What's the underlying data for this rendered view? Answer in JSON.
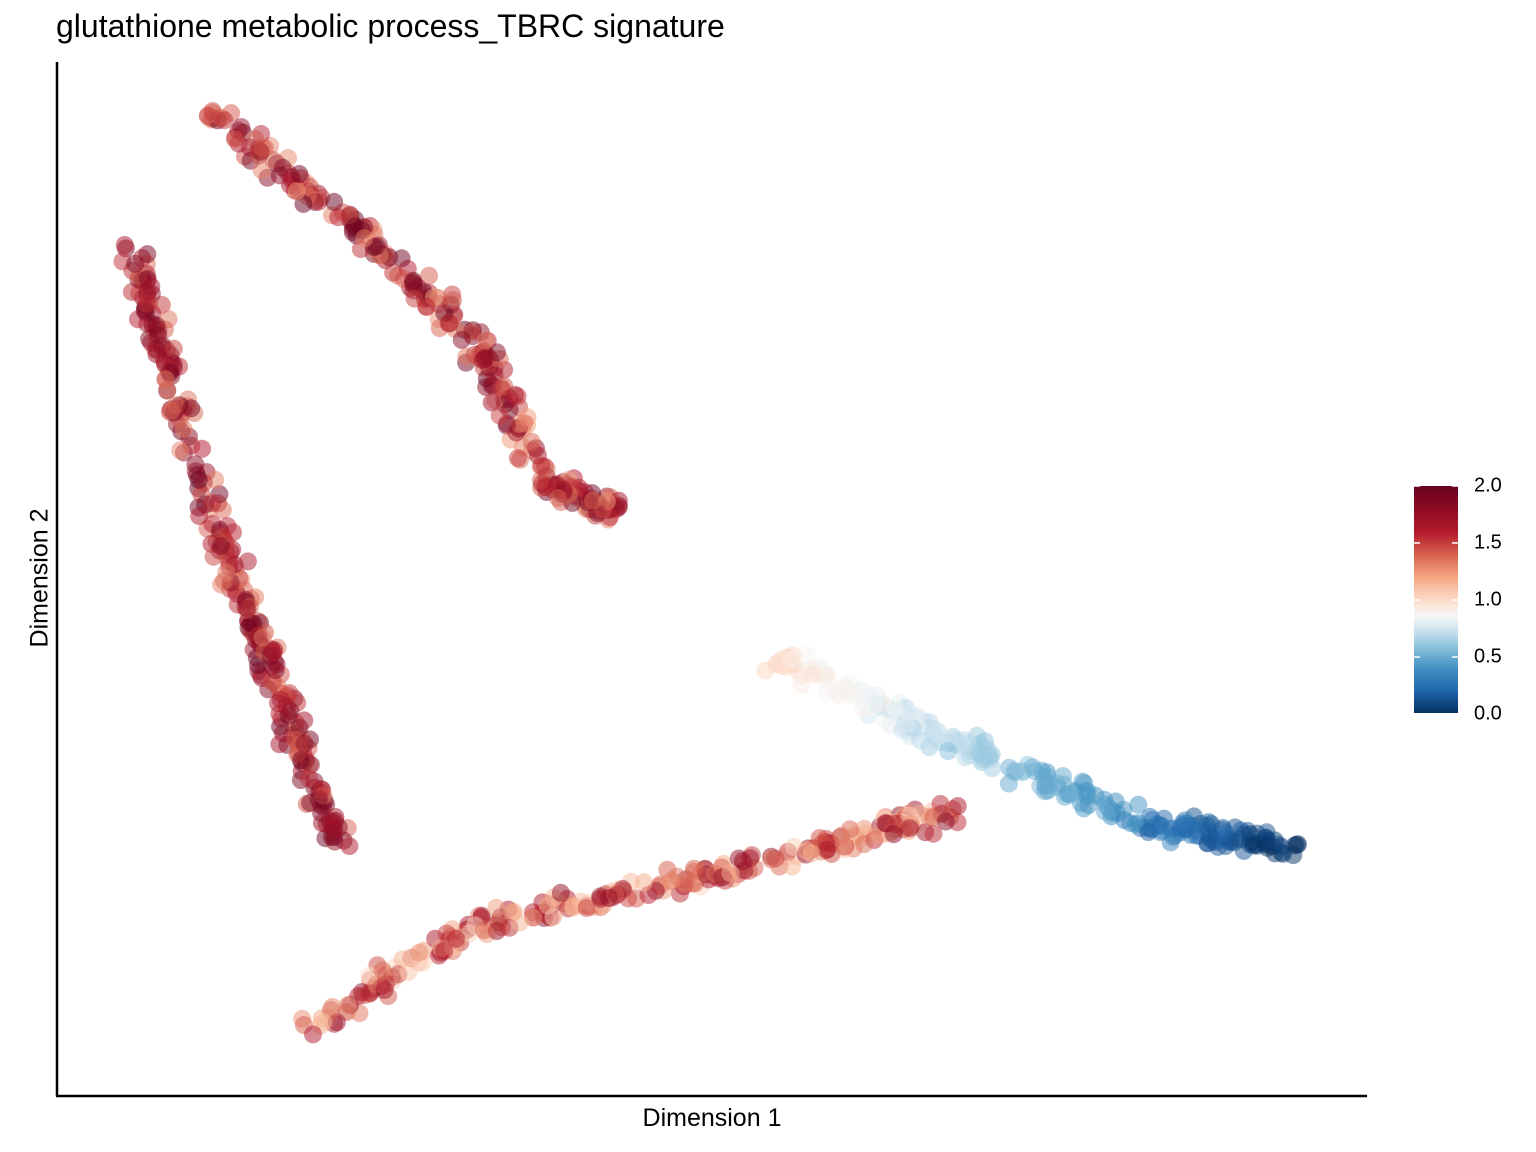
{
  "chart_data": {
    "type": "scatter",
    "title": "glutathione metabolic process_TBRC signature",
    "xlabel": "Dimension 1",
    "ylabel": "Dimension 2",
    "grid": false,
    "axis_ticks": false,
    "legend": {
      "position": "right",
      "type": "colorbar",
      "range": [
        0.0,
        2.0
      ],
      "ticks": [
        "0.0",
        "0.5",
        "1.0",
        "1.5",
        "2.0"
      ],
      "colors": [
        "#053061",
        "#2166ac",
        "#4393c3",
        "#92c5de",
        "#d1e5f0",
        "#f7f7f7",
        "#fddbc7",
        "#f4a582",
        "#d6604d",
        "#b2182b",
        "#67001f"
      ]
    },
    "point_opacity": 0.5,
    "trajectory_branches": [
      {
        "name": "",
        "value_range": [
          1.3,
          2.0
        ],
        "points": [
          [
            0.02,
            0.85
          ],
          [
            0.05,
            0.7
          ],
          [
            0.1,
            0.52
          ],
          [
            0.15,
            0.35
          ],
          [
            0.19,
            0.22
          ]
        ]
      },
      {
        "name": "",
        "value_range": [
          1.2,
          2.0
        ],
        "points": [
          [
            0.08,
            0.99
          ],
          [
            0.2,
            0.87
          ],
          [
            0.3,
            0.75
          ],
          [
            0.36,
            0.6
          ],
          [
            0.42,
            0.57
          ]
        ]
      },
      {
        "name": "",
        "value_range": [
          0.0,
          1.0
        ],
        "points": [
          [
            0.55,
            0.42
          ],
          [
            0.7,
            0.33
          ],
          [
            0.85,
            0.25
          ],
          [
            0.98,
            0.22
          ]
        ]
      },
      {
        "name": "",
        "value_range": [
          1.0,
          1.8
        ],
        "points": [
          [
            0.16,
            0.03
          ],
          [
            0.3,
            0.14
          ],
          [
            0.45,
            0.18
          ],
          [
            0.58,
            0.22
          ],
          [
            0.7,
            0.26
          ]
        ]
      }
    ]
  }
}
